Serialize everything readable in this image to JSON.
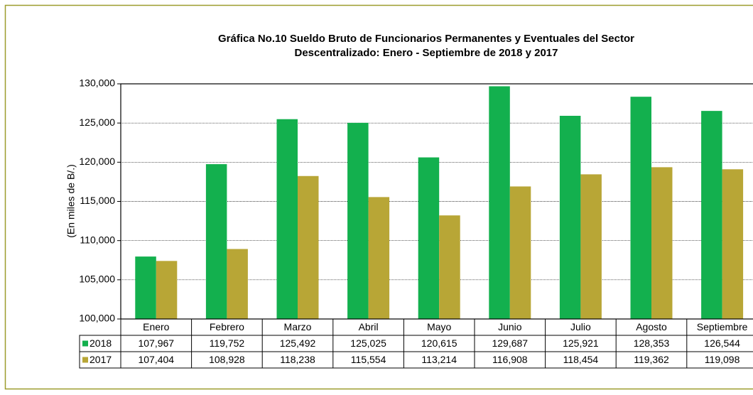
{
  "chart_data": {
    "type": "bar",
    "title": [
      "Gráfica No.10 Sueldo Bruto de Funcionarios Permanentes y Eventuales del Sector",
      "Descentralizado: Enero - Septiembre de 2018 y 2017"
    ],
    "y_label": "(En miles de B/.)",
    "categories": [
      "Enero",
      "Febrero",
      "Marzo",
      "Abril",
      "Mayo",
      "Junio",
      "Julio",
      "Agosto",
      "Septiembre"
    ],
    "series": [
      {
        "name": "2018",
        "color": "#13b04e",
        "values": [
          107967,
          119752,
          125492,
          125025,
          120615,
          129687,
          125921,
          128353,
          126544
        ],
        "value_labels": [
          "107,967",
          "119,752",
          "125,492",
          "125,025",
          "120,615",
          "129,687",
          "125,921",
          "128,353",
          "126,544"
        ]
      },
      {
        "name": "2017",
        "color": "#b8a636",
        "values": [
          107404,
          108928,
          118238,
          115554,
          113214,
          116908,
          118454,
          119362,
          119098
        ],
        "value_labels": [
          "107,404",
          "108,928",
          "118,238",
          "115,554",
          "113,214",
          "116,908",
          "118,454",
          "119,362",
          "119,098"
        ]
      }
    ],
    "ylim": [
      100000,
      130000
    ],
    "yticks": [
      {
        "value": 100000,
        "label": "100,000"
      },
      {
        "value": 105000,
        "label": "105,000"
      },
      {
        "value": 110000,
        "label": "110,000"
      },
      {
        "value": 115000,
        "label": "115,000"
      },
      {
        "value": 120000,
        "label": "120,000"
      },
      {
        "value": 125000,
        "label": "125,000"
      },
      {
        "value": 130000,
        "label": "130,000"
      }
    ],
    "grid": true
  }
}
